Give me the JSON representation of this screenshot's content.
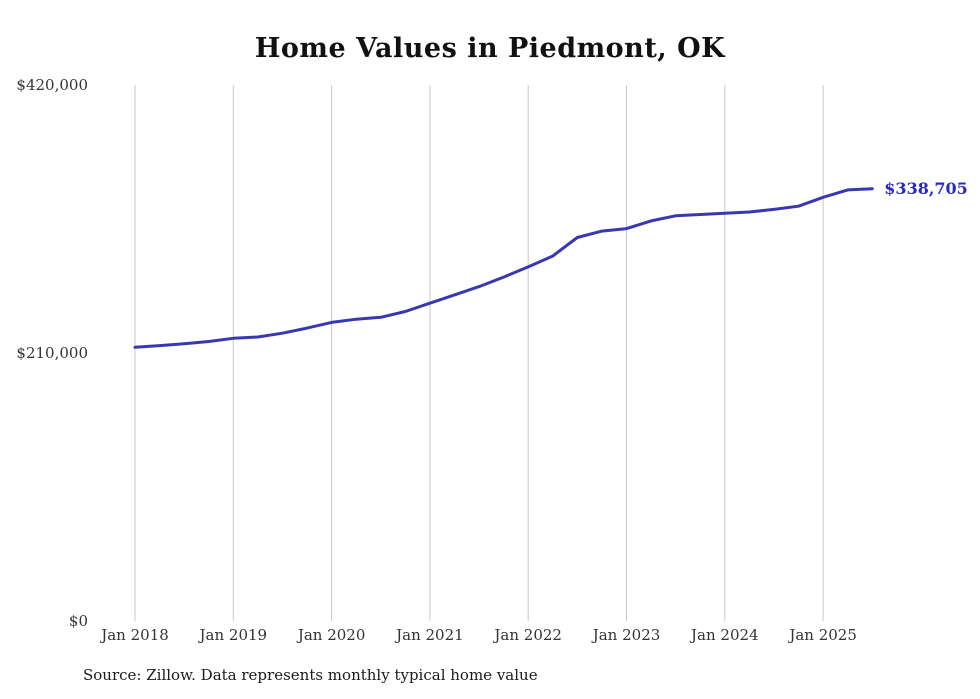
{
  "source_note": "Source: Zillow. Data represents monthly typical home value",
  "colors": {
    "line": "#3838b0",
    "annotation": "#2828c8",
    "grid": "#c9c9c9",
    "axis_text": "#333333",
    "title_text": "#111111",
    "source_text": "#1a1a1a",
    "background": "#ffffff"
  },
  "chart_data": {
    "type": "line",
    "title": "Home Values in Piedmont, OK",
    "annotation": "$338,705",
    "legend": "none",
    "grid": "vertical-only",
    "ylim": [
      0,
      420000
    ],
    "x_ticks": [
      2018,
      2019,
      2020,
      2021,
      2022,
      2023,
      2024,
      2025
    ],
    "x_tick_labels": [
      "Jan 2018",
      "Jan 2019",
      "Jan 2020",
      "Jan 2021",
      "Jan 2022",
      "Jan 2023",
      "Jan 2024",
      "Jan 2025"
    ],
    "y_ticks": [
      {
        "value": 0,
        "label": "$0"
      },
      {
        "value": 210000,
        "label": "$210,000"
      },
      {
        "value": 420000,
        "label": "$420,000"
      }
    ],
    "series": [
      {
        "name": "Typical home value",
        "x": [
          2018,
          2018.25,
          2018.5,
          2018.75,
          2019,
          2019.25,
          2019.5,
          2019.75,
          2020,
          2020.25,
          2020.5,
          2020.75,
          2021,
          2021.25,
          2021.5,
          2021.75,
          2022,
          2022.25,
          2022.5,
          2022.75,
          2023,
          2023.25,
          2023.5,
          2023.75,
          2024,
          2024.25,
          2024.5,
          2024.75,
          2025,
          2025.25,
          2025.5
        ],
        "values": [
          214500,
          215800,
          217200,
          219000,
          221500,
          222500,
          225500,
          229500,
          234000,
          236500,
          238000,
          242500,
          249000,
          255500,
          262000,
          269500,
          277500,
          286000,
          300500,
          305500,
          307500,
          313500,
          317500,
          318500,
          319500,
          320500,
          322500,
          325000,
          332000,
          337800,
          338705
        ]
      }
    ]
  }
}
